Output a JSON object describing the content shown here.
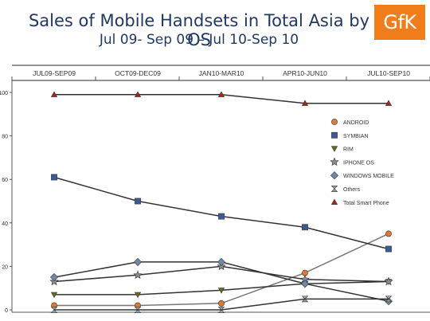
{
  "header": {
    "title": "Sales of Mobile Handsets in Total Asia by OS",
    "subtitle": "Jul 09- Sep 09 – Jul 10-Sep 10",
    "logo": "GfK"
  },
  "chart_data": {
    "type": "line",
    "title": "Sales of Mobile Handsets in Total Asia by OS",
    "subtitle": "Jul 09- Sep 09 – Jul 10-Sep 10",
    "categories": [
      "JUL09-SEP09",
      "OCT09-DEC09",
      "JAN10-MAR10",
      "APR10-JUN10",
      "JUL10-SEP10"
    ],
    "ylim": [
      0,
      100
    ],
    "yticks": [
      0,
      20,
      40,
      60,
      80,
      100
    ],
    "ylabel": "",
    "xlabel": "",
    "grid": false,
    "legend_position": "right",
    "series": [
      {
        "name": "ANDROID",
        "values": [
          2,
          2,
          3,
          17,
          35
        ],
        "color": "#e07a2e",
        "marker": "circle"
      },
      {
        "name": "SYMBIAN",
        "values": [
          61,
          50,
          43,
          38,
          28
        ],
        "color": "#3b5a9a",
        "marker": "square"
      },
      {
        "name": "RIM",
        "values": [
          7,
          7,
          9,
          12,
          13
        ],
        "color": "#6b6b1e",
        "marker": "triangle-down"
      },
      {
        "name": "IPHONE OS",
        "values": [
          13,
          16,
          20,
          14,
          13
        ],
        "color": "#8a8a8a",
        "marker": "star"
      },
      {
        "name": "WINDOWS MOBILE",
        "values": [
          15,
          22,
          22,
          12,
          4
        ],
        "color": "#6e8aa8",
        "marker": "diamond"
      },
      {
        "name": "Others",
        "values": [
          0,
          0,
          0,
          5,
          5
        ],
        "color": "#9c9c9c",
        "marker": "hourglass"
      },
      {
        "name": "Total Smart Phone",
        "values": [
          99,
          99,
          99,
          95,
          95
        ],
        "color": "#b02418",
        "marker": "triangle-up"
      }
    ]
  }
}
